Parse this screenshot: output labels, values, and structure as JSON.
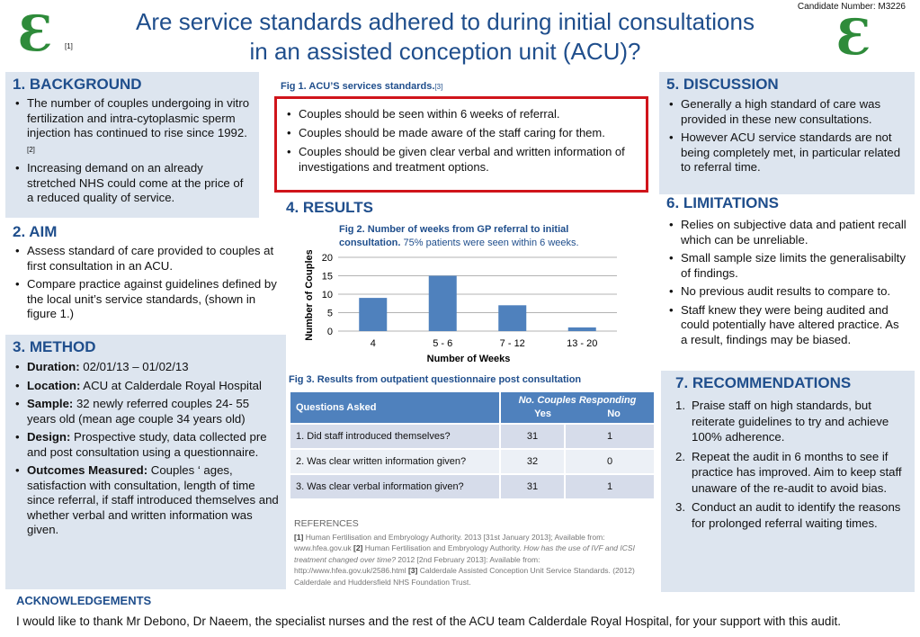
{
  "header": {
    "title_line1": "Are service standards adhered to during initial consultations",
    "title_line2": "in an assisted conception unit (ACU)?",
    "candidate": "Candidate Number: M3226",
    "logo_left": "Ɛ",
    "logo_right": "Ɛ",
    "logo_cite": "[1]"
  },
  "background": {
    "heading": "1. BACKGROUND",
    "items": [
      "The number of couples  undergoing in vitro fertilization and intra-cytoplasmic sperm injection has continued to rise since 1992.",
      "Increasing demand on an already stretched NHS could come at the price of a reduced quality of service."
    ],
    "item1_cite": "[2]"
  },
  "aim": {
    "heading": "2. AIM",
    "items": [
      "Assess standard of care provided to couples at first consultation in an ACU.",
      "Compare practice against guidelines defined by the local unit’s service standards, (shown in figure 1.)"
    ]
  },
  "method": {
    "heading": "3. METHOD",
    "items": [
      {
        "label": "Duration:",
        "text": " 02/01/13 – 01/02/13"
      },
      {
        "label": "Location:",
        "text": " ACU at Calderdale Royal Hospital"
      },
      {
        "label": "Sample:",
        "text": " 32 newly referred  couples 24- 55 years old (mean age couple 34 years old)"
      },
      {
        "label": "Design:",
        "text": " Prospective study, data collected pre and post consultation using a questionnaire."
      },
      {
        "label": "Outcomes Measured:",
        "text": " Couples ‘ ages, satisfaction with consultation, length of time since referral, if staff introduced themselves and whether verbal and written information was given."
      }
    ]
  },
  "fig1": {
    "caption": "Fig 1. ACU’S services standards.",
    "cite": "[3]",
    "items": [
      "Couples should be seen within 6 weeks of referral.",
      "Couples should be made aware of the staff caring for them.",
      "Couples should be given clear verbal and written information of investigations and treatment options."
    ]
  },
  "results": {
    "heading": "4. RESULTS",
    "fig2_caption_bold": "Fig 2. Number of weeks from GP referral to initial consultation.",
    "fig2_caption_normal": " 75% patients were seen within 6 weeks.",
    "fig3_caption": "Fig 3. Results from outpatient questionnaire post consultation"
  },
  "chart_data": {
    "type": "bar",
    "categories": [
      "4",
      "5 - 6",
      "7 - 12",
      "13 - 20"
    ],
    "values": [
      9,
      15,
      7,
      1
    ],
    "xlabel": "Number of Weeks",
    "ylabel": "Number of Couples",
    "ylim": [
      0,
      20
    ],
    "yticks": [
      "0",
      "5",
      "10",
      "15",
      "20"
    ],
    "grid": true,
    "bar_color": "#4f81bd"
  },
  "questions_table": {
    "col_question": "Questions Asked",
    "col_group": "No. Couples Responding",
    "col_yes": "Yes",
    "col_no": "No",
    "rows": [
      {
        "q": "1. Did staff introduced themselves?",
        "yes": "31",
        "no": "1"
      },
      {
        "q": "2. Was clear written information given?",
        "yes": "32",
        "no": "0"
      },
      {
        "q": "3. Was clear verbal information given?",
        "yes": "31",
        "no": "1"
      }
    ]
  },
  "references": {
    "heading": "REFERENCES",
    "r1_num": "[1]",
    "r1_text": " Human Fertilisation and Embryology Authority. 2013 [31st January 2013]; Available from: www.hfea.gov.uk ",
    "r2_num": "[2]",
    "r2_text": " Human Fertilisation and Embryology Authority. ",
    "r2_italic": "How has the use of IVF and ICSI treatment changed over time?",
    "r2_rest": " 2012 [2nd February 2013]: Available from: http://www.hfea.gov.uk/2586.html ",
    "r3_num": "[3]",
    "r3_text": " Calderdale Assisted Conception Unit Service Standards. (2012) Calderdale and Huddersfield NHS Foundation Trust."
  },
  "discussion": {
    "heading": "5. DISCUSSION",
    "items": [
      "Generally a high standard of care was provided in these new consultations.",
      "However ACU service standards are not being completely met, in particular related to referral time."
    ]
  },
  "limitations": {
    "heading": "6. LIMITATIONS",
    "items": [
      "Relies on subjective data and patient recall which can be unreliable.",
      "Small sample size limits the generalisabilty of findings.",
      "No previous audit results to compare to.",
      "Staff knew they were being audited and could potentially have altered practice. As a result, findings may be biased."
    ]
  },
  "recommendations": {
    "heading": "7. RECOMMENDATIONS",
    "items": [
      {
        "num": "1.",
        "text": "Praise staff on high standards, but reiterate guidelines  to try and achieve 100% adherence."
      },
      {
        "num": "2.",
        "text": "Repeat the audit in 6 months to see if practice has improved. Aim to keep staff unaware of the re-audit to avoid bias."
      },
      {
        "num": "3.",
        "text": "Conduct an audit to identify the reasons for prolonged referral waiting times."
      }
    ]
  },
  "acknowledgements": {
    "heading": "ACKNOWLEDGEMENTS",
    "text": "I would like to thank Mr Debono, Dr Naeem, the specialist nurses and the rest of the ACU team Calderdale Royal Hospital, for your support with this audit."
  }
}
